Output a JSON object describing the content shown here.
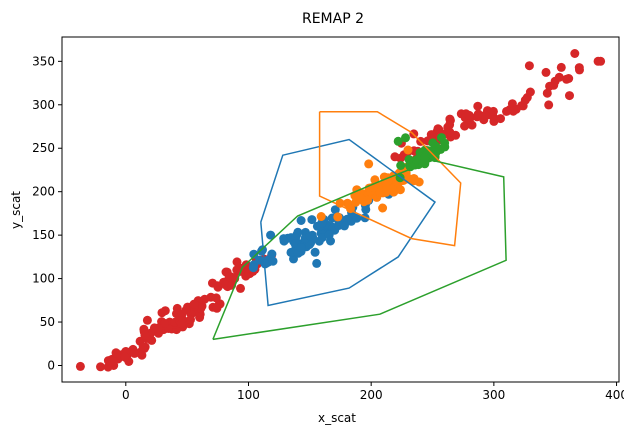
{
  "chart_data": {
    "type": "scatter",
    "title": "REMAP 2",
    "xlabel": "x_scat",
    "ylabel": "y_scat",
    "xlim": [
      -52,
      402
    ],
    "ylim": [
      -19,
      378
    ],
    "xticks": [
      0,
      100,
      200,
      300,
      400
    ],
    "yticks": [
      0,
      50,
      100,
      150,
      200,
      250,
      300,
      350
    ],
    "grid": false,
    "legend": "none",
    "colors": {
      "red": "#d62728",
      "blue": "#1f77b4",
      "orange": "#ff7f0e",
      "green": "#2ca02c"
    },
    "point_groups": [
      {
        "color": "red",
        "clusters": [
          {
            "cx": 0,
            "cy": 12,
            "sx": 12,
            "sy": 9,
            "n": 28
          },
          {
            "cx": 45,
            "cy": 55,
            "sx": 20,
            "sy": 15,
            "n": 55
          },
          {
            "cx": 90,
            "cy": 105,
            "sx": 16,
            "sy": 14,
            "n": 38
          },
          {
            "cx": 255,
            "cy": 265,
            "sx": 18,
            "sy": 14,
            "n": 32
          },
          {
            "cx": 310,
            "cy": 295,
            "sx": 22,
            "sy": 12,
            "n": 28
          },
          {
            "cx": 360,
            "cy": 335,
            "sx": 14,
            "sy": 10,
            "n": 10
          }
        ],
        "points": [
          [
            -37,
            -1
          ],
          [
            385,
            350
          ],
          [
            366,
            359
          ],
          [
            329,
            345
          ],
          [
            355,
            343
          ],
          [
            387,
            350
          ]
        ]
      },
      {
        "color": "blue",
        "clusters": [
          {
            "cx": 148,
            "cy": 145,
            "sx": 25,
            "sy": 20,
            "n": 85
          }
        ],
        "points": [
          [
            118,
            150
          ],
          [
            185,
            182
          ],
          [
            198,
            190
          ],
          [
            120,
            120
          ],
          [
            195,
            170
          ]
        ]
      },
      {
        "color": "orange",
        "clusters": [
          {
            "cx": 210,
            "cy": 205,
            "sx": 18,
            "sy": 15,
            "n": 70
          }
        ],
        "points": [
          [
            230,
            248
          ],
          [
            198,
            232
          ],
          [
            235,
            215
          ]
        ]
      },
      {
        "color": "green",
        "clusters": [
          {
            "cx": 243,
            "cy": 238,
            "sx": 10,
            "sy": 10,
            "n": 40
          }
        ],
        "points": [
          [
            222,
            258
          ],
          [
            228,
            262
          ]
        ]
      }
    ],
    "hulls": [
      {
        "color": "blue",
        "points": [
          [
            110,
            165
          ],
          [
            128,
            242
          ],
          [
            182,
            260
          ],
          [
            252,
            188
          ],
          [
            222,
            125
          ],
          [
            182,
            89
          ],
          [
            116,
            69
          ],
          [
            110,
            165
          ]
        ]
      },
      {
        "color": "orange",
        "points": [
          [
            158,
            292
          ],
          [
            205,
            292
          ],
          [
            233,
            268
          ],
          [
            273,
            210
          ],
          [
            268,
            138
          ],
          [
            233,
            146
          ],
          [
            158,
            195
          ],
          [
            158,
            228
          ],
          [
            158,
            292
          ]
        ]
      },
      {
        "color": "green",
        "points": [
          [
            71,
            30
          ],
          [
            207,
            59
          ],
          [
            310,
            121
          ],
          [
            308,
            217
          ],
          [
            250,
            236
          ],
          [
            207,
            212
          ],
          [
            140,
            172
          ],
          [
            95,
            113
          ],
          [
            71,
            30
          ]
        ]
      }
    ]
  }
}
